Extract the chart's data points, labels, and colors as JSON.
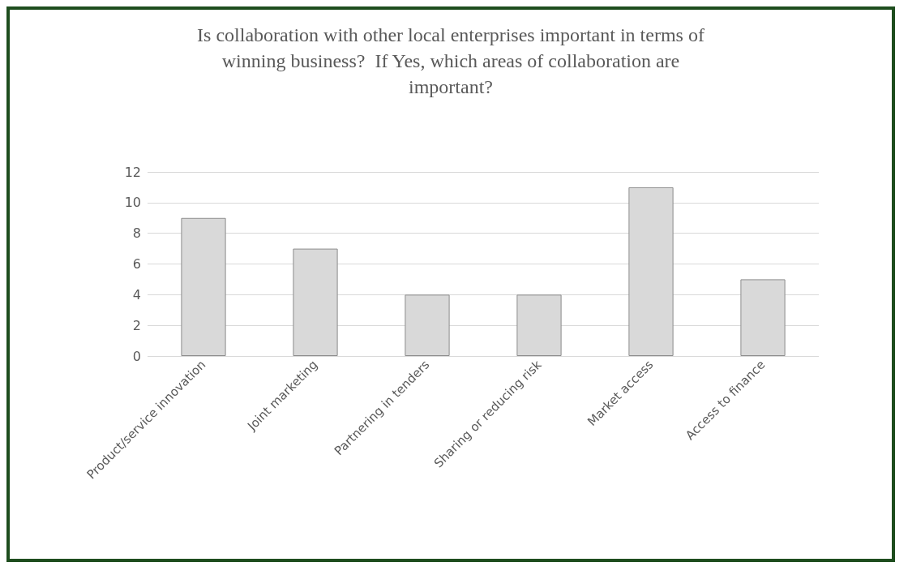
{
  "chart_data": {
    "type": "bar",
    "title": "Is collaboration with other local enterprises important in terms of\nwinning business?  If Yes, which areas of collaboration are\nimportant?",
    "categories": [
      "Product/service innovation",
      "Joint marketing",
      "Partnering in tenders",
      "Sharing or reducing risk",
      "Market access",
      "Access to finance"
    ],
    "values": [
      9,
      7,
      4,
      4,
      11,
      5
    ],
    "color": "#d9d9d9",
    "ylim": [
      0,
      12
    ],
    "yticks": [
      0,
      2,
      4,
      6,
      8,
      10,
      12
    ],
    "grid": "y"
  }
}
